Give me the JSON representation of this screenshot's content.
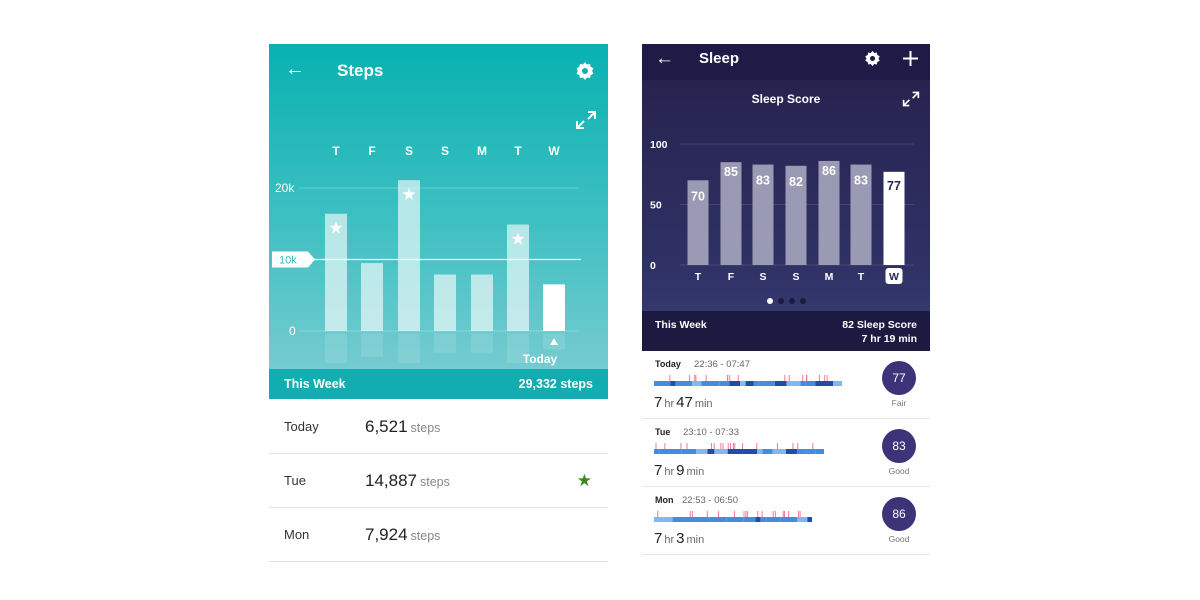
{
  "steps": {
    "title": "Steps",
    "goal_label": "10k",
    "today_label": "Today",
    "footer": {
      "label": "This Week",
      "total": "29,332 steps"
    },
    "list": [
      {
        "day": "Today",
        "value": "6,521",
        "unit": "steps",
        "star": false
      },
      {
        "day": "Tue",
        "value": "14,887",
        "unit": "steps",
        "star": true
      },
      {
        "day": "Mon",
        "value": "7,924",
        "unit": "steps",
        "star": false
      }
    ]
  },
  "sleep": {
    "title": "Sleep",
    "subtitle": "Sleep Score",
    "footer": {
      "label": "This Week",
      "score": "82 Sleep Score",
      "duration": "7 hr 19 min"
    },
    "page_dots": {
      "count": 4,
      "active": 0
    },
    "list": [
      {
        "day": "Today",
        "time": "22:36 - 07:47",
        "h": "7",
        "m": "47",
        "hr": "hr",
        "min": "min",
        "score": "77",
        "rating": "Fair"
      },
      {
        "day": "Tue",
        "time": "23:10 - 07:33",
        "h": "7",
        "m": "9",
        "hr": "hr",
        "min": "min",
        "score": "83",
        "rating": "Good"
      },
      {
        "day": "Mon",
        "time": "22:53 - 06:50",
        "h": "7",
        "m": "3",
        "hr": "hr",
        "min": "min",
        "score": "86",
        "rating": "Good"
      }
    ]
  },
  "chart_data": [
    {
      "type": "bar",
      "title": "Steps",
      "categories": [
        "T",
        "F",
        "S",
        "S",
        "M",
        "T",
        "W"
      ],
      "values": [
        16400,
        9500,
        21100,
        7900,
        7900,
        14887,
        6521
      ],
      "stars": [
        true,
        false,
        true,
        false,
        false,
        true,
        false
      ],
      "yticks": [
        "0",
        "20k"
      ],
      "ylim": [
        0,
        25000
      ],
      "goal": 10000,
      "highlight": 6
    },
    {
      "type": "bar",
      "title": "Sleep Score",
      "categories": [
        "T",
        "F",
        "S",
        "S",
        "M",
        "T",
        "W"
      ],
      "values": [
        70,
        85,
        83,
        82,
        86,
        83,
        77
      ],
      "yticks": [
        "0",
        "50",
        "100"
      ],
      "ylim": [
        0,
        100
      ],
      "highlight": 6
    }
  ]
}
